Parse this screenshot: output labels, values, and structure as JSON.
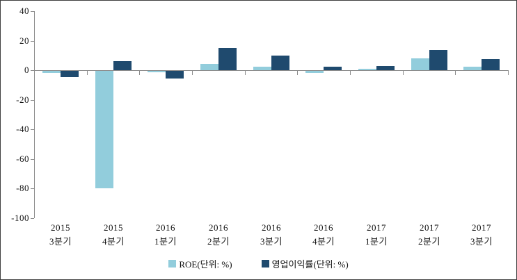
{
  "chart_data": {
    "type": "bar",
    "title": "",
    "xlabel": "",
    "ylabel": "",
    "categories": [
      {
        "year": "2015",
        "quarter": "3분기"
      },
      {
        "year": "2015",
        "quarter": "4분기"
      },
      {
        "year": "2016",
        "quarter": "1분기"
      },
      {
        "year": "2016",
        "quarter": "2분기"
      },
      {
        "year": "2016",
        "quarter": "3분기"
      },
      {
        "year": "2016",
        "quarter": "4분기"
      },
      {
        "year": "2017",
        "quarter": "1분기"
      },
      {
        "year": "2017",
        "quarter": "2분기"
      },
      {
        "year": "2017",
        "quarter": "3분기"
      }
    ],
    "series": [
      {
        "name": "ROE(단위: %)",
        "color": "#92CDDC",
        "values": [
          -2,
          -80,
          -1.5,
          4.5,
          2.5,
          -2,
          1,
          8,
          2.5
        ]
      },
      {
        "name": "영업이익률(단위: %)",
        "color": "#1F4A6E",
        "values": [
          -4.5,
          6,
          -5.5,
          15,
          10,
          2.5,
          3,
          13.5,
          7.5
        ]
      }
    ],
    "ylim": [
      -100,
      40
    ],
    "yticks": [
      40,
      20,
      0,
      -20,
      -40,
      -60,
      -80,
      -100
    ],
    "grid": false,
    "legend_position": "bottom"
  },
  "colors": {
    "axis": "#8c8c8c",
    "text": "#111111",
    "background": "#ffffff"
  }
}
